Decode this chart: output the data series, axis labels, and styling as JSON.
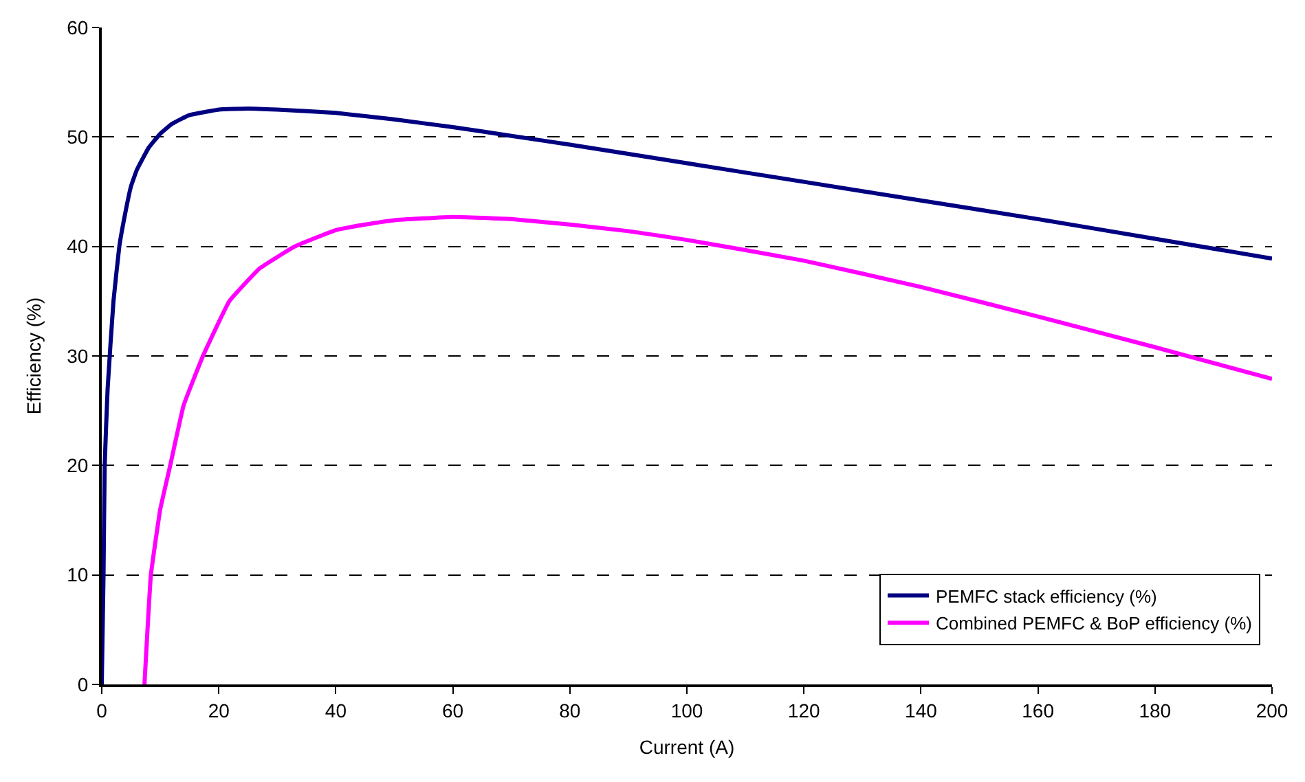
{
  "chart_data": {
    "type": "line",
    "xlabel": "Current (A)",
    "ylabel": "Efficiency (%)",
    "xlim": [
      0,
      200
    ],
    "xticks": [
      0,
      20,
      40,
      60,
      80,
      100,
      120,
      140,
      160,
      180,
      200
    ],
    "ylim": [
      0,
      60
    ],
    "yticks": [
      0,
      10,
      20,
      30,
      40,
      50,
      60
    ],
    "grid": "y",
    "legend": "bottom right",
    "marker": "none",
    "line_style": "solid",
    "series": [
      {
        "name": "PEMFC stack efficiency (%)",
        "color": "#000080",
        "x": [
          0,
          0.3,
          0.5,
          1,
          2,
          3,
          4,
          5,
          6,
          8,
          10,
          12,
          15,
          20,
          25,
          30,
          40,
          50,
          60,
          70,
          80,
          100,
          120,
          140,
          160,
          180,
          200
        ],
        "values": [
          0,
          10,
          20,
          27,
          35,
          40,
          43,
          45.5,
          47,
          49,
          50.3,
          51.2,
          52,
          52.5,
          52.6,
          52.5,
          52.2,
          51.6,
          50.9,
          50.1,
          49.3,
          47.6,
          45.9,
          44.2,
          42.5,
          40.7,
          38.9
        ]
      },
      {
        "name": "Combined PEMFC & BoP efficiency (%)",
        "color": "#ff00ff",
        "x": [
          7.3,
          8.4,
          10,
          11.7,
          14,
          17.3,
          21.8,
          27,
          33,
          40,
          45,
          50,
          60,
          70,
          80,
          90,
          100,
          120,
          140,
          160,
          180,
          200
        ],
        "values": [
          0,
          10,
          16,
          20,
          25.5,
          30,
          35,
          38,
          40,
          41.5,
          42,
          42.4,
          42.7,
          42.5,
          42,
          41.4,
          40.6,
          38.7,
          36.3,
          33.6,
          30.8,
          27.9
        ]
      }
    ]
  }
}
